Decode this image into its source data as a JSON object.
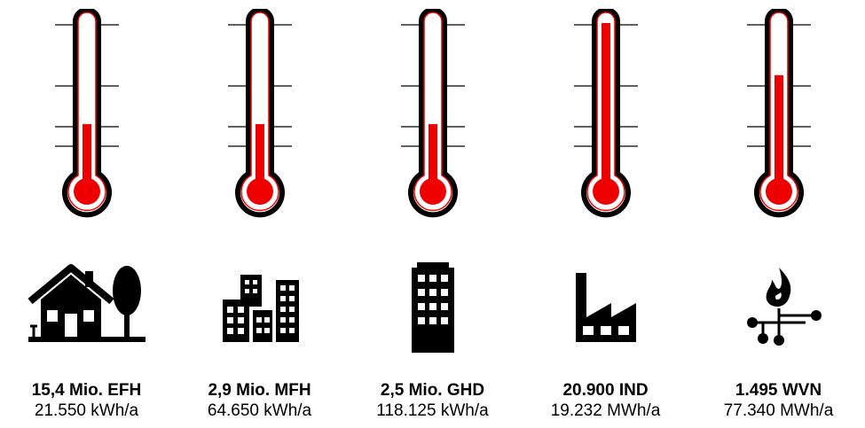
{
  "accent_color": "#ee0000",
  "items": [
    {
      "count": "15,4 Mio. EFH",
      "value": "21.550 kWh/a",
      "icon": "house-with-tree-icon",
      "level": 0.38
    },
    {
      "count": "2,9 Mio. MFH",
      "value": "64.650 kWh/a",
      "icon": "apartment-buildings-icon",
      "level": 0.38
    },
    {
      "count": "2,5 Mio. GHD",
      "value": "118.125 kWh/a",
      "icon": "office-tower-icon",
      "level": 0.38
    },
    {
      "count": "20.900 IND",
      "value": "19.232 MWh/a",
      "icon": "factory-icon",
      "level": 1.0
    },
    {
      "count": "1.495 WVN",
      "value": "77.340 MWh/a",
      "icon": "flame-network-icon",
      "level": 0.68
    }
  ]
}
